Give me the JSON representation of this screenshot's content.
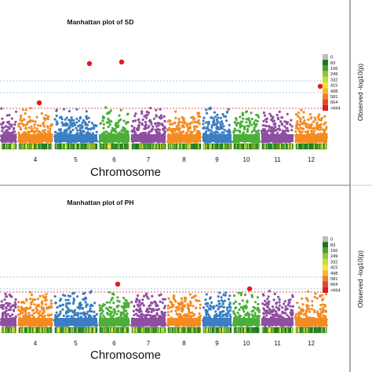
{
  "chart_data": [
    {
      "type": "scatter",
      "title": "Manhattan plot of SD",
      "xlabel": "Chromosome",
      "ylabel": "Observed  -log10(p)",
      "chromosomes": [
        "4",
        "5",
        "6",
        "7",
        "8",
        "9",
        "10",
        "11",
        "12"
      ],
      "series_colors": [
        "#8e4fa0",
        "#f48b20",
        "#3b7ec1",
        "#4caf3a"
      ],
      "significant_points": [
        {
          "chromosome": "4",
          "color": "#e31a1c"
        },
        {
          "chromosome": "5",
          "color": "#e31a1c"
        },
        {
          "chromosome": "6",
          "color": "#e31a1c"
        },
        {
          "chromosome": "9",
          "color": "#3b7ec1"
        },
        {
          "chromosome": "12",
          "color": "#e31a1c"
        }
      ],
      "threshold_lines": [
        "#8fb9d8",
        "#8fb9d8",
        "#e31a1c"
      ],
      "density_legend": {
        "labels": [
          "0",
          "83",
          "166",
          "249",
          "332",
          "415",
          "498",
          "581",
          "664",
          ">664"
        ],
        "colors": [
          "#bdbdbd",
          "#1a7a1a",
          "#4fa12c",
          "#8cc63e",
          "#c8dc3a",
          "#f2e530",
          "#f5b82e",
          "#ef7f2a",
          "#e8452a",
          "#e01a1a"
        ]
      },
      "density_strip": true
    },
    {
      "type": "scatter",
      "title": "Manhattan plot of PH",
      "xlabel": "Chromosome",
      "ylabel": "Observed  -log10(p)",
      "chromosomes": [
        "4",
        "5",
        "6",
        "7",
        "8",
        "9",
        "10",
        "11",
        "12"
      ],
      "series_colors": [
        "#8e4fa0",
        "#f48b20",
        "#3b7ec1",
        "#4caf3a"
      ],
      "significant_points": [
        {
          "chromosome": "5",
          "color": "#3b7ec1"
        },
        {
          "chromosome": "6",
          "color": "#e31a1c"
        },
        {
          "chromosome": "10",
          "color": "#e31a1c"
        }
      ],
      "threshold_lines": [
        "#8fb9d8",
        "#8fb9d8",
        "#e31a1c"
      ],
      "density_legend": {
        "labels": [
          "0",
          "83",
          "166",
          "249",
          "332",
          "415",
          "498",
          "581",
          "664",
          ">664"
        ],
        "colors": [
          "#bdbdbd",
          "#1a7a1a",
          "#4fa12c",
          "#8cc63e",
          "#c8dc3a",
          "#f2e530",
          "#f5b82e",
          "#ef7f2a",
          "#e8452a",
          "#e01a1a"
        ]
      },
      "density_strip": true
    }
  ]
}
